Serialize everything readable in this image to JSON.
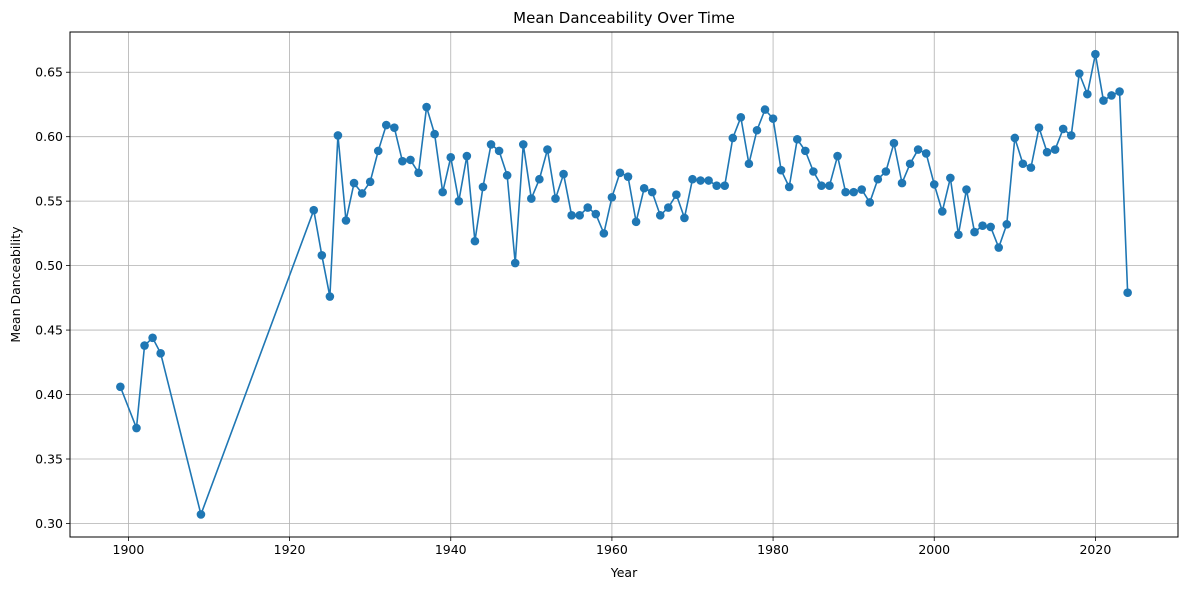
{
  "chart_data": {
    "type": "line",
    "title": "Mean Danceability Over Time",
    "xlabel": "Year",
    "ylabel": "Mean Danceability",
    "xlim": [
      1892.75,
      2030.25
    ],
    "ylim": [
      0.2895,
      0.6812
    ],
    "grid": true,
    "marker": "circle",
    "line_color": "#1f77b4",
    "x_ticks": [
      1900,
      1920,
      1940,
      1960,
      1980,
      2000,
      2020
    ],
    "y_ticks": [
      0.3,
      0.35,
      0.4,
      0.45,
      0.5,
      0.55,
      0.6,
      0.65
    ],
    "x_tick_labels": [
      "1900",
      "1920",
      "1940",
      "1960",
      "1980",
      "2000",
      "2020"
    ],
    "y_tick_labels": [
      "0.30",
      "0.35",
      "0.40",
      "0.45",
      "0.50",
      "0.55",
      "0.60",
      "0.65"
    ],
    "series": [
      {
        "x": [
          1899,
          1901,
          1902,
          1903,
          1904,
          1909,
          1923,
          1924,
          1925,
          1926,
          1927,
          1928,
          1929,
          1930,
          1931,
          1932,
          1933,
          1934,
          1935,
          1936,
          1937,
          1938,
          1939,
          1940,
          1941,
          1942,
          1943,
          1944,
          1945,
          1946,
          1947,
          1948,
          1949,
          1950,
          1951,
          1952,
          1953,
          1954,
          1955,
          1956,
          1957,
          1958,
          1959,
          1960,
          1961,
          1962,
          1963,
          1964,
          1965,
          1966,
          1967,
          1968,
          1969,
          1970,
          1971,
          1972,
          1973,
          1974,
          1975,
          1976,
          1977,
          1978,
          1979,
          1980,
          1981,
          1982,
          1983,
          1984,
          1985,
          1986,
          1987,
          1988,
          1989,
          1990,
          1991,
          1992,
          1993,
          1994,
          1995,
          1996,
          1997,
          1998,
          1999,
          2000,
          2001,
          2002,
          2003,
          2004,
          2005,
          2006,
          2007,
          2008,
          2009,
          2010,
          2011,
          2012,
          2013,
          2014,
          2015,
          2016,
          2017,
          2018,
          2019,
          2020,
          2021,
          2022,
          2023,
          2024
        ],
        "y": [
          0.406,
          0.374,
          0.438,
          0.444,
          0.432,
          0.307,
          0.543,
          0.508,
          0.476,
          0.601,
          0.535,
          0.564,
          0.556,
          0.565,
          0.589,
          0.609,
          0.607,
          0.581,
          0.582,
          0.572,
          0.623,
          0.602,
          0.557,
          0.584,
          0.55,
          0.585,
          0.519,
          0.561,
          0.594,
          0.589,
          0.57,
          0.502,
          0.594,
          0.552,
          0.567,
          0.59,
          0.552,
          0.571,
          0.539,
          0.539,
          0.545,
          0.54,
          0.525,
          0.553,
          0.572,
          0.569,
          0.534,
          0.56,
          0.557,
          0.539,
          0.545,
          0.555,
          0.537,
          0.567,
          0.566,
          0.566,
          0.562,
          0.562,
          0.599,
          0.615,
          0.579,
          0.605,
          0.621,
          0.614,
          0.574,
          0.561,
          0.598,
          0.589,
          0.573,
          0.562,
          0.562,
          0.585,
          0.557,
          0.557,
          0.559,
          0.549,
          0.567,
          0.573,
          0.595,
          0.564,
          0.579,
          0.59,
          0.587,
          0.563,
          0.542,
          0.568,
          0.524,
          0.559,
          0.526,
          0.531,
          0.53,
          0.514,
          0.532,
          0.599,
          0.579,
          0.576,
          0.607,
          0.588,
          0.59,
          0.606,
          0.601,
          0.649,
          0.633,
          0.664,
          0.628,
          0.632,
          0.635,
          0.479
        ]
      }
    ]
  }
}
